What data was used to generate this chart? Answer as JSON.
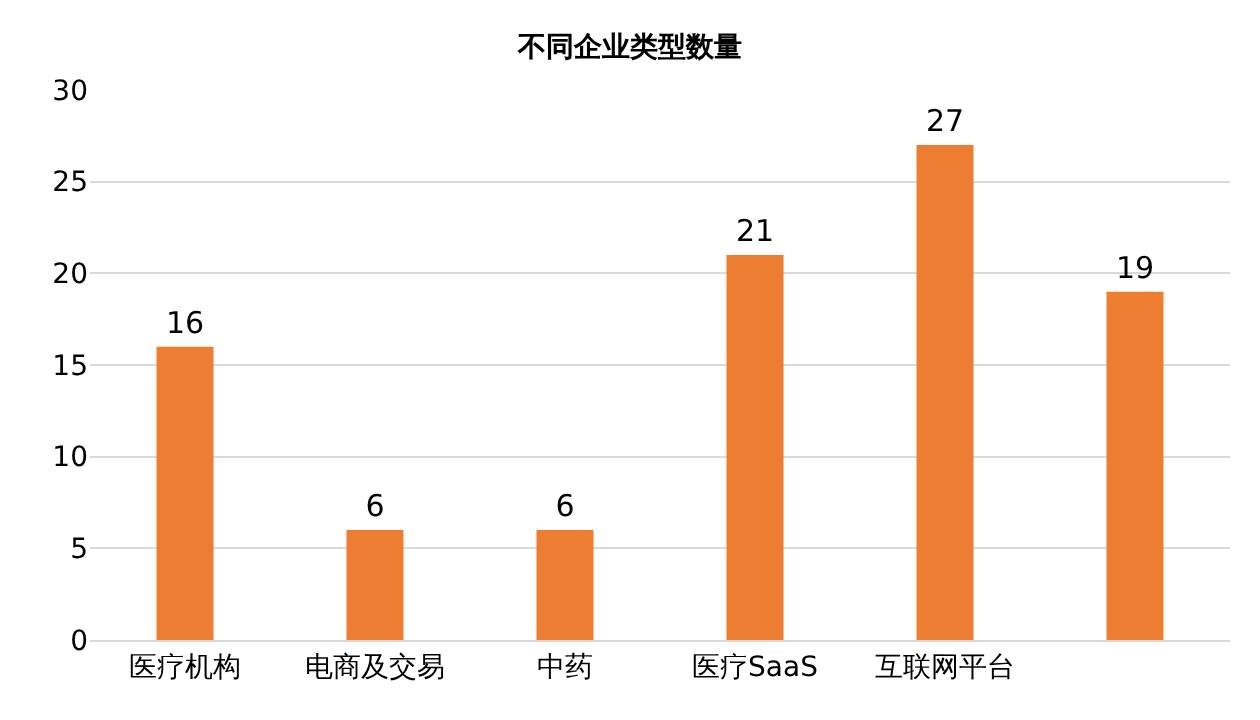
{
  "chart_data": {
    "type": "bar",
    "title": "不同企业类型数量",
    "categories": [
      "医疗机构",
      "电商及交易",
      "中药",
      "医疗SaaS",
      "互联网平台",
      null
    ],
    "values": [
      16,
      6,
      6,
      21,
      27,
      19
    ],
    "color": "#ed7d31",
    "ylim": [
      0,
      30
    ],
    "yticks": [
      0,
      5,
      10,
      15,
      20,
      25,
      30
    ],
    "grid": "y",
    "data_labels": true
  }
}
